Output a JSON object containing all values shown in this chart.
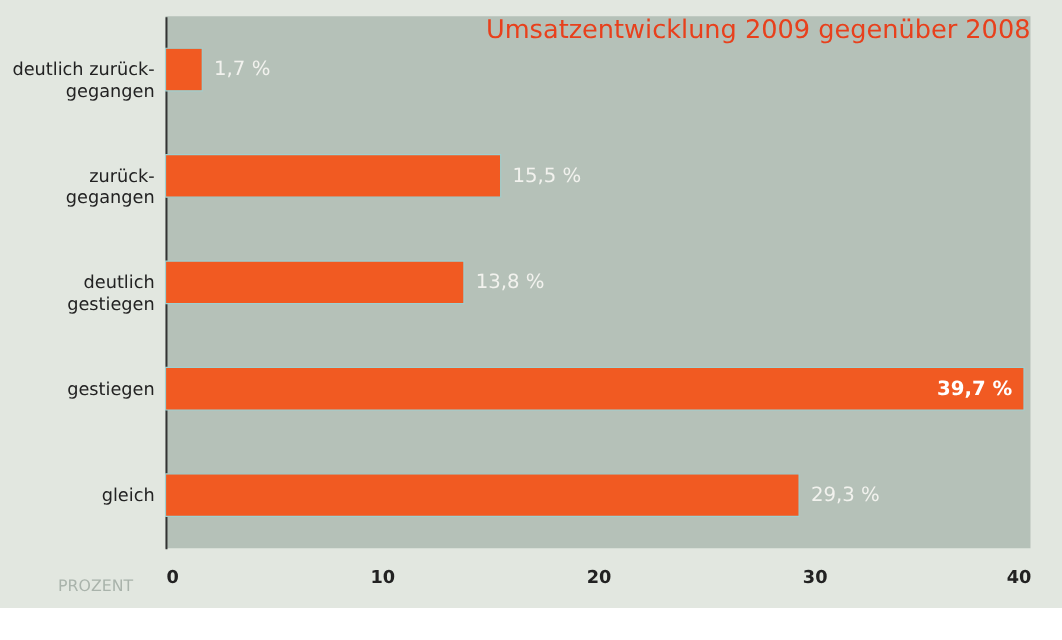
{
  "chart_data": {
    "type": "bar",
    "orientation": "horizontal",
    "title": "Umsatzentwicklung 2009 gegenüber 2008",
    "xlabel": "PROZENT",
    "categories": [
      "deutlich zurück-\ngegangen",
      "zurück-\ngegangen",
      "deutlich\ngestiegen",
      "gestiegen",
      "gleich"
    ],
    "values": [
      1.7,
      15.5,
      13.8,
      39.7,
      29.3
    ],
    "value_labels": [
      "1,7 %",
      "15,5 %",
      "13,8 %",
      "39,7 %",
      "29,3 %"
    ],
    "color": "#f15a22",
    "xlim": [
      0,
      40
    ],
    "xticks": [
      0,
      10,
      20,
      30,
      40
    ],
    "grid": false
  }
}
